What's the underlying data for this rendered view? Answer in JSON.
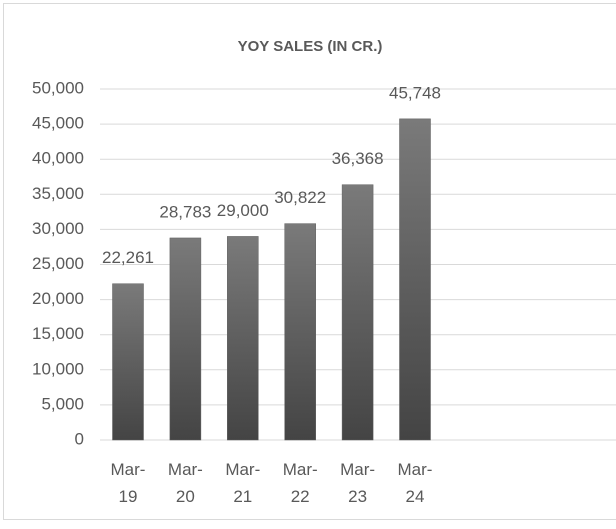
{
  "chart_data": {
    "type": "bar",
    "title": "YOY SALES (IN CR.)",
    "categories": [
      "Mar-19",
      "Mar-20",
      "Mar-21",
      "Mar-22",
      "Mar-23",
      "Mar-24"
    ],
    "values": [
      22261,
      28783,
      29000,
      30822,
      36368,
      45748
    ],
    "value_labels": [
      "22,261",
      "28,783",
      "29,000",
      "30,822",
      "36,368",
      "45,748"
    ],
    "color": "#5f5f5f",
    "ylim": [
      0,
      50000
    ],
    "yticks": [
      0,
      {
        "value": 5000,
        "label": "5,000"
      },
      {
        "value": 10000,
        "label": "10,000"
      },
      {
        "value": 15000,
        "label": "15,000"
      },
      {
        "value": 20000,
        "label": "20,000"
      },
      {
        "value": 25000,
        "label": "25,000"
      },
      {
        "value": 30000,
        "label": "30,000"
      },
      {
        "value": 35000,
        "label": "35,000"
      },
      {
        "value": 40000,
        "label": "40,000"
      },
      {
        "value": 45000,
        "label": "45,000"
      },
      {
        "value": 50000,
        "label": "50,000"
      }
    ],
    "grid": true
  }
}
